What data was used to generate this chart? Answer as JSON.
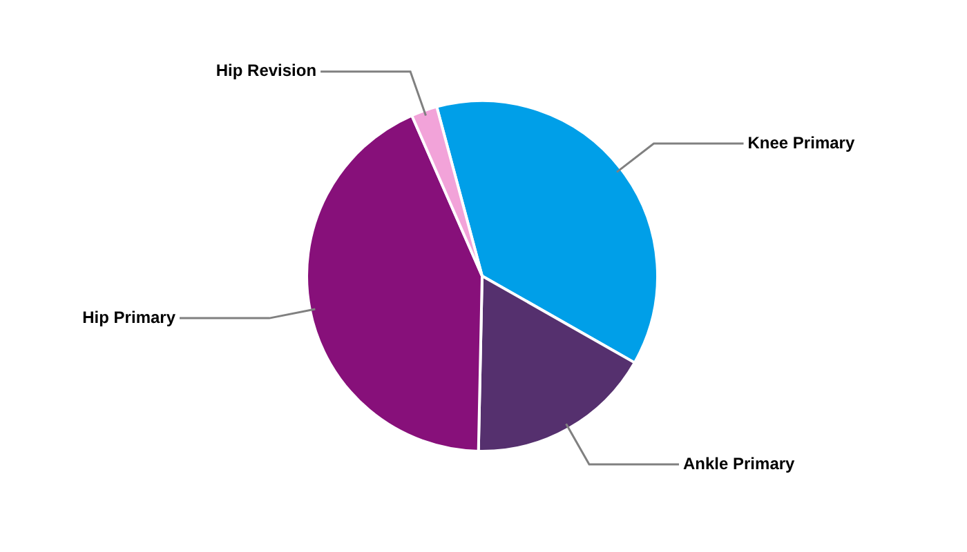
{
  "chart_data": {
    "type": "pie",
    "categories": [
      "Knee Primary",
      "Ankle Primary",
      "Hip Primary",
      "Hip Revision"
    ],
    "values": [
      37.4,
      17.1,
      43.1,
      2.4
    ],
    "colors": [
      "#009fe8",
      "#55306e",
      "#87107a",
      "#f2a3d9"
    ],
    "legend": false
  }
}
